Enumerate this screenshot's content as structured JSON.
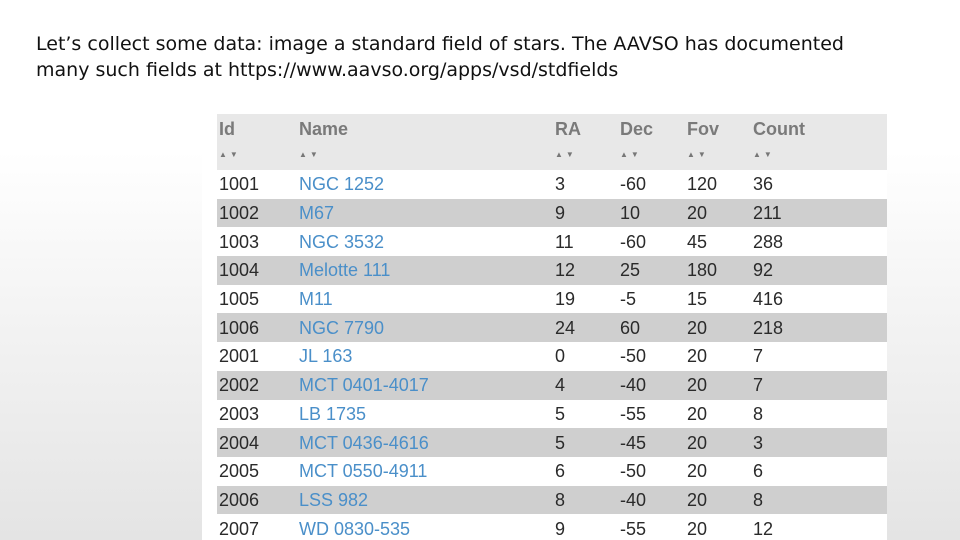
{
  "caption": {
    "line1": "Let’s collect some data: image a standard field of stars.  The AAVSO has documented",
    "line2": "many such fields at   https://www.aavso.org/apps/vsd/stdfields"
  },
  "table": {
    "columns": [
      "Id",
      "Name",
      "RA",
      "Dec",
      "Fov",
      "Count"
    ],
    "sort_glyph": "▲▼",
    "rows": [
      [
        "1001",
        "NGC 1252",
        "3",
        "-60",
        "120",
        "36"
      ],
      [
        "1002",
        "M67",
        "9",
        "10",
        "20",
        "211"
      ],
      [
        "1003",
        "NGC 3532",
        "11",
        "-60",
        "45",
        "288"
      ],
      [
        "1004",
        "Melotte 111",
        "12",
        "25",
        "180",
        "92"
      ],
      [
        "1005",
        "M11",
        "19",
        "-5",
        "15",
        "416"
      ],
      [
        "1006",
        "NGC 7790",
        "24",
        "60",
        "20",
        "218"
      ],
      [
        "2001",
        "JL 163",
        "0",
        "-50",
        "20",
        "7"
      ],
      [
        "2002",
        "MCT 0401-4017",
        "4",
        "-40",
        "20",
        "7"
      ],
      [
        "2003",
        "LB 1735",
        "5",
        "-55",
        "20",
        "8"
      ],
      [
        "2004",
        "MCT 0436-4616",
        "5",
        "-45",
        "20",
        "3"
      ],
      [
        "2005",
        "MCT 0550-4911",
        "6",
        "-50",
        "20",
        "6"
      ],
      [
        "2006",
        "LSS 982",
        "8",
        "-40",
        "20",
        "8"
      ],
      [
        "2007",
        "WD 0830-535",
        "9",
        "-55",
        "20",
        "12"
      ]
    ]
  },
  "colors": {
    "link": "#4a8fc9",
    "header_bg": "#e8e8e8",
    "alt_row_bg": "#cfcfcf"
  }
}
